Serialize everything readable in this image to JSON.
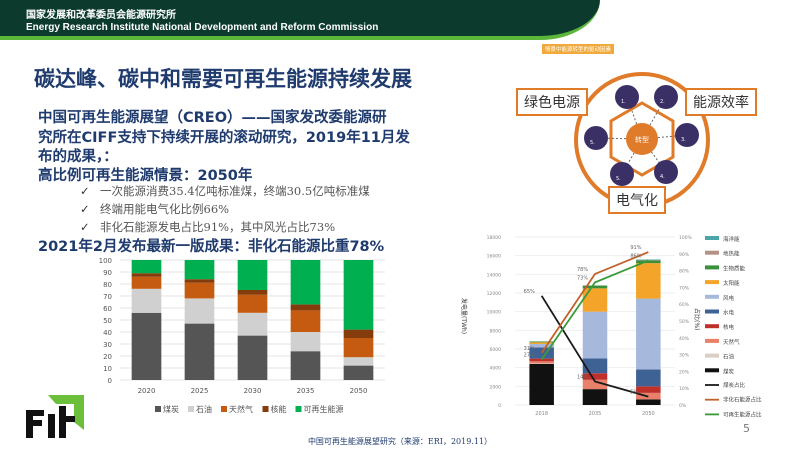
{
  "header": {
    "org_cn": "国家发展和改革委员会能源研究所",
    "org_en": "Energy Research Institute National Development and Reform Commission"
  },
  "title": "碳达峰、碳中和需要可再生能源持续发展",
  "body": {
    "lines": [
      "中国可再生能源展望（CREO）——国家发改委能源研",
      "究所在CIFF支持下持续开展的滚动研究，2019年11月发",
      "布的成果，：",
      "高比例可再生能源情景：2050年"
    ],
    "check": "✓",
    "bullets": [
      "一次能源消费35.4亿吨标准煤，终端30.5亿吨标准煤",
      "终端用能电气化比例66%",
      "非化石能源发电占比91%，其中风光占比73%"
    ],
    "latest": "2021年2月发布最新一版成果：非化石能源比重78%"
  },
  "diagram": {
    "tag": "情景中能源转型的驱动因素",
    "center": "转型",
    "labels": [
      "绿色电源",
      "能源效率",
      "电气化"
    ],
    "icons": [
      "wind-turbine-icon",
      "building-icon",
      "lightbulb-icon",
      "coins-icon",
      "arrows-icon",
      "cloud-icon"
    ],
    "icon_numbers": [
      "1.",
      "2.",
      "3.",
      "4.",
      "5.",
      "5."
    ],
    "accent": "#e07b2a",
    "icon_bg": "#3b3066"
  },
  "chart_data": [
    {
      "type": "bar",
      "stacked": true,
      "categories": [
        "2020",
        "2025",
        "2030",
        "2035",
        "2050"
      ],
      "ylim": [
        0,
        100
      ],
      "yticks": [
        "0",
        "10",
        "20",
        "30",
        "40",
        "50",
        "60",
        "70",
        "80",
        "90",
        "100"
      ],
      "grid": true,
      "legend": "bottom",
      "series": [
        {
          "name": "煤炭",
          "color": "#555555",
          "values": [
            56,
            47,
            37,
            24,
            12
          ]
        },
        {
          "name": "石油",
          "color": "#d0d0d0",
          "values": [
            20,
            21,
            19,
            16,
            7
          ]
        },
        {
          "name": "天然气",
          "color": "#c55a11",
          "values": [
            10,
            13,
            15,
            18,
            16
          ]
        },
        {
          "name": "核能",
          "color": "#843c0c",
          "values": [
            3,
            3,
            4,
            5,
            7
          ]
        },
        {
          "name": "可再生能源",
          "color": "#00b050",
          "values": [
            11,
            16,
            25,
            37,
            58
          ]
        }
      ]
    },
    {
      "type": "bar",
      "stacked": true,
      "categories": [
        "2018",
        "2035",
        "2050"
      ],
      "ylabel": "发电量(TWh)",
      "y2label": "占比(%)",
      "ylim": [
        0,
        18000
      ],
      "y2lim": [
        0,
        100
      ],
      "grid": true,
      "legend": "right",
      "yticks": [
        "0",
        "2000",
        "4000",
        "6000",
        "8000",
        "10000",
        "12000",
        "14000",
        "16000",
        "18000"
      ],
      "y2ticks": [
        "0%",
        "10%",
        "20%",
        "30%",
        "40%",
        "50%",
        "60%",
        "70%",
        "80%",
        "90%",
        "100%"
      ],
      "series": [
        {
          "name": "煤炭",
          "color": "#111111",
          "values": [
            4400,
            1700,
            600
          ]
        },
        {
          "name": "石油",
          "color": "#d9cfc6",
          "values": [
            50,
            0,
            0
          ]
        },
        {
          "name": "天然气",
          "color": "#e8806a",
          "values": [
            230,
            1000,
            700
          ]
        },
        {
          "name": "核电",
          "color": "#c0302a",
          "values": [
            290,
            700,
            700
          ]
        },
        {
          "name": "水电",
          "color": "#3f6295",
          "values": [
            1200,
            1600,
            1800
          ]
        },
        {
          "name": "风电",
          "color": "#a6b9dd",
          "values": [
            370,
            5000,
            7600
          ]
        },
        {
          "name": "太阳能",
          "color": "#f4a429",
          "values": [
            180,
            2500,
            3800
          ]
        },
        {
          "name": "生物质能",
          "color": "#3a8f3a",
          "values": [
            90,
            300,
            300
          ]
        },
        {
          "name": "地热能",
          "color": "#b39187",
          "values": [
            0,
            0,
            50
          ]
        },
        {
          "name": "海洋能",
          "color": "#4aa5a8",
          "values": [
            0,
            0,
            50
          ]
        }
      ],
      "lines": [
        {
          "name": "煤炭占比",
          "color": "#1a1a1a",
          "values": [
            65,
            14,
            5
          ],
          "labels": [
            "65%",
            "14%",
            "5%"
          ]
        },
        {
          "name": "非化石能源占比",
          "color": "#c2602a",
          "values": [
            31,
            78,
            91
          ],
          "labels": [
            "31%",
            "78%",
            "91%"
          ]
        },
        {
          "name": "可再生能源占比",
          "color": "#3a9a3a",
          "values": [
            27,
            73,
            86
          ],
          "labels": [
            "27%",
            "73%",
            "86%"
          ]
        }
      ]
    }
  ],
  "footer": "中国可再生能源展望研究（来源：ERI，2019.11）",
  "page_number": "5"
}
